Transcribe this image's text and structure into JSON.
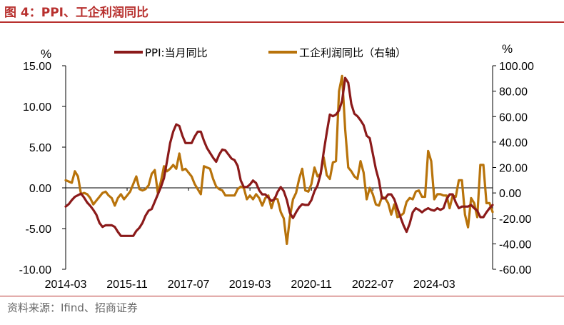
{
  "header": {
    "title": "图 4：PPI、工企利润同比"
  },
  "footer": {
    "source": "资料来源：Ifind、招商证券"
  },
  "chart_data": {
    "type": "line",
    "title": "图 4：PPI、工企利润同比",
    "left_unit": "%",
    "right_unit": "%",
    "left_ylim": [
      -10,
      15
    ],
    "right_ylim": [
      -60,
      100
    ],
    "left_ticks": [
      "15.00",
      "10.00",
      "5.00",
      "0.00",
      "-5.00",
      "-10.00"
    ],
    "left_tick_values": [
      15,
      10,
      5,
      0,
      -5,
      -10
    ],
    "right_ticks": [
      "100.00",
      "80.00",
      "60.00",
      "40.00",
      "20.00",
      "0.00",
      "-20.00",
      "-40.00",
      "-60.00"
    ],
    "right_tick_values": [
      100,
      80,
      60,
      40,
      20,
      0,
      -20,
      -40,
      -60
    ],
    "x_ticks": [
      "2014-03",
      "2015-11",
      "2017-07",
      "2019-03",
      "2020-11",
      "2022-07",
      "2024-03"
    ],
    "x_tick_index": [
      0,
      20,
      40,
      60,
      80,
      100,
      120
    ],
    "x_count": 140,
    "series": [
      {
        "name": "PPI:当月同比",
        "axis": "left",
        "color": "#8b1a1a",
        "values": [
          -2.3,
          -2.0,
          -1.5,
          -1.1,
          -0.9,
          -0.7,
          -1.2,
          -1.8,
          -2.2,
          -2.7,
          -3.3,
          -4.3,
          -4.8,
          -4.6,
          -4.6,
          -4.6,
          -4.8,
          -5.4,
          -5.9,
          -5.9,
          -5.9,
          -5.9,
          -5.9,
          -5.3,
          -4.9,
          -4.3,
          -3.4,
          -2.8,
          -2.6,
          -1.7,
          -0.8,
          0.1,
          1.2,
          3.3,
          5.5,
          6.9,
          7.8,
          7.6,
          6.4,
          5.5,
          5.5,
          5.5,
          6.3,
          6.9,
          6.9,
          5.8,
          4.9,
          4.3,
          3.7,
          3.2,
          4.1,
          4.7,
          4.6,
          4.1,
          3.6,
          3.4,
          2.7,
          0.9,
          0.1,
          0.1,
          0.4,
          0.9,
          0.6,
          -0.3,
          -0.8,
          -0.8,
          -1.2,
          -1.6,
          -1.4,
          -0.5,
          0.1,
          -0.4,
          -1.5,
          -3.1,
          -3.7,
          -3.0,
          -2.4,
          -2.0,
          -2.1,
          -2.1,
          -1.5,
          -0.4,
          0.3,
          1.7,
          4.4,
          6.8,
          9.0,
          8.8,
          9.0,
          9.5,
          10.7,
          13.5,
          12.9,
          10.3,
          9.1,
          8.8,
          8.3,
          7.7,
          6.4,
          6.1,
          4.2,
          2.3,
          0.9,
          -1.3,
          -1.3,
          -0.8,
          -0.8,
          -1.4,
          -2.5,
          -3.6,
          -4.6,
          -5.4,
          -4.4,
          -3.0,
          -2.5,
          -2.7,
          -3.0,
          -2.7,
          -2.5,
          -2.7,
          -2.8,
          -2.5,
          -2.7,
          -2.5,
          -1.4,
          -0.8,
          -0.8,
          -1.8,
          -2.5,
          -2.3,
          -2.3,
          -2.3,
          -2.1,
          -2.5,
          -2.8,
          -3.6,
          -3.6,
          -3.0,
          -2.5,
          -2.1
        ]
      },
      {
        "name": "工企利润同比（右轴）",
        "axis": "right",
        "color": "#b8730b",
        "values": [
          10,
          9,
          8,
          17,
          13,
          -1,
          0,
          -1,
          -4,
          -9,
          -6,
          -3,
          0,
          1,
          -2,
          -4,
          -10,
          -4,
          -1,
          -5,
          -2,
          1,
          7,
          13,
          3,
          2,
          3,
          6,
          15,
          18,
          0,
          9,
          21,
          17,
          19,
          22,
          19,
          31,
          18,
          19,
          16,
          13,
          7,
          3,
          -1,
          21,
          20,
          19,
          11,
          5,
          3,
          2,
          -2,
          -2,
          -2,
          -2,
          3,
          5,
          4,
          -5,
          -2,
          -5,
          -1,
          -4,
          -10,
          -4,
          -2,
          -12,
          -4,
          -5,
          -15,
          -20,
          -40,
          -19,
          -5,
          0,
          11,
          19,
          2,
          1,
          7,
          20,
          13,
          15,
          28,
          14,
          11,
          24,
          25,
          80,
          92,
          50,
          20,
          17,
          13,
          11,
          25,
          16,
          -5,
          4,
          -1,
          -9,
          -10,
          -3,
          -4,
          -8,
          -17,
          -9,
          -19,
          -18,
          -16,
          -7,
          -4,
          -5,
          1,
          2,
          -3,
          -3,
          33,
          25,
          -5,
          -1,
          -1,
          -2,
          -2,
          -12,
          -2,
          -3,
          10,
          10,
          -17,
          -27,
          -4,
          -8,
          -19,
          22,
          22,
          -8,
          -8,
          -15
        ]
      }
    ]
  }
}
